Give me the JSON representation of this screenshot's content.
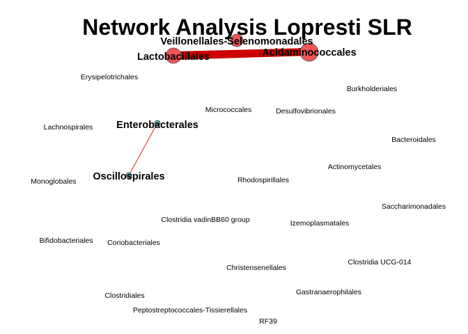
{
  "title": "Network Analysis Lopresti SLR",
  "nodes": {
    "veillonellales": {
      "label": "Veillonellales-Selenomonadales"
    },
    "lactobacillales": {
      "label": "Lactobacillales"
    },
    "acidaminococcales": {
      "label": "Acidaminococcales"
    },
    "erysipelotrichales": {
      "label": "Erysipelotrichales"
    },
    "burkholderiales": {
      "label": "Burkholderiales"
    },
    "micrococcales": {
      "label": "Micrococcales"
    },
    "desulfovibrionales": {
      "label": "Desulfovibrionales"
    },
    "enterobacterales": {
      "label": "Enterobacterales"
    },
    "lachnospirales": {
      "label": "Lachnospirales"
    },
    "bacteroidales": {
      "label": "Bacteroidales"
    },
    "actinomycetales": {
      "label": "Actinomycetales"
    },
    "oscillospirales": {
      "label": "Oscillospirales"
    },
    "rhodospirillales": {
      "label": "Rhodospirillales"
    },
    "monoglobales": {
      "label": "Monoglobales"
    },
    "saccharimonadales": {
      "label": "Saccharimonadales"
    },
    "clostridia_vadin": {
      "label": "Clostridia vadinBB60 group"
    },
    "izemoplasmatales": {
      "label": "Izemoplasmatales"
    },
    "bifidobacteriales": {
      "label": "Bifidobacteriales"
    },
    "coriobacteriales": {
      "label": "Coriobacteriales"
    },
    "christensenellales": {
      "label": "Christensenellales"
    },
    "clostridia_ucg014": {
      "label": "Clostridia UCG-014"
    },
    "clostridiales": {
      "label": "Clostridiales"
    },
    "gastranaerophilales": {
      "label": "Gastranaerophilales"
    },
    "peptostreptococcales": {
      "label": "Peptostreptococcales-Tissierellales"
    },
    "rf39": {
      "label": "RF39"
    }
  },
  "edges": [
    {
      "from": "lactobacillales",
      "to": "acidaminococcales",
      "weight": "strong",
      "color": "#cc0000"
    },
    {
      "from": "enterobacterales",
      "to": "oscillospirales",
      "weight": "weak",
      "color": "#dd2222"
    }
  ],
  "colors": {
    "hub_fill": "#f05454",
    "small_fill": "#5fb2b5",
    "node_stroke": "#666666",
    "edge": "#cc0000"
  }
}
